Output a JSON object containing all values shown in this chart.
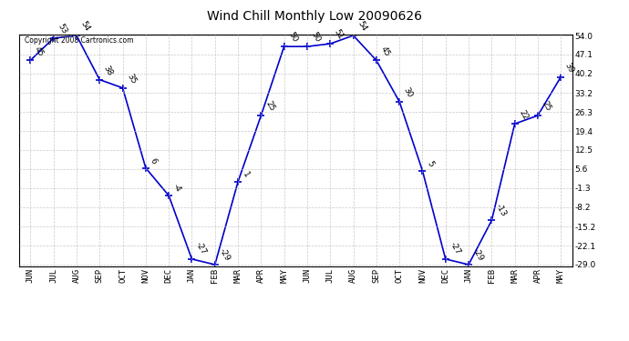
{
  "title": "Wind Chill Monthly Low 20090626",
  "copyright": "Copyright 2008 Cartronics.com",
  "months": [
    "JUN",
    "JUL",
    "AUG",
    "SEP",
    "OCT",
    "NOV",
    "DEC",
    "JAN",
    "FEB",
    "MAR",
    "APR",
    "MAY",
    "JUN",
    "JUL",
    "AUG",
    "SEP",
    "OCT",
    "NOV",
    "DEC",
    "JAN",
    "FEB",
    "MAR",
    "APR",
    "MAY"
  ],
  "values": [
    45,
    53,
    54,
    38,
    35,
    6,
    -4,
    -27,
    -29,
    1,
    25,
    50,
    50,
    51,
    54,
    45,
    30,
    5,
    -27,
    -29,
    -13,
    22,
    25,
    39
  ],
  "line_color": "#0000cc",
  "marker_color": "#0000cc",
  "bg_color": "#ffffff",
  "grid_color": "#bbbbbb",
  "yticks": [
    54.0,
    47.1,
    40.2,
    33.2,
    26.3,
    19.4,
    12.5,
    5.6,
    -1.3,
    -8.2,
    -15.2,
    -22.1,
    -29.0
  ],
  "ymin": -29.0,
  "ymax": 54.0,
  "label_fontsize": 6.5,
  "tick_fontsize": 6.5,
  "title_fontsize": 10
}
